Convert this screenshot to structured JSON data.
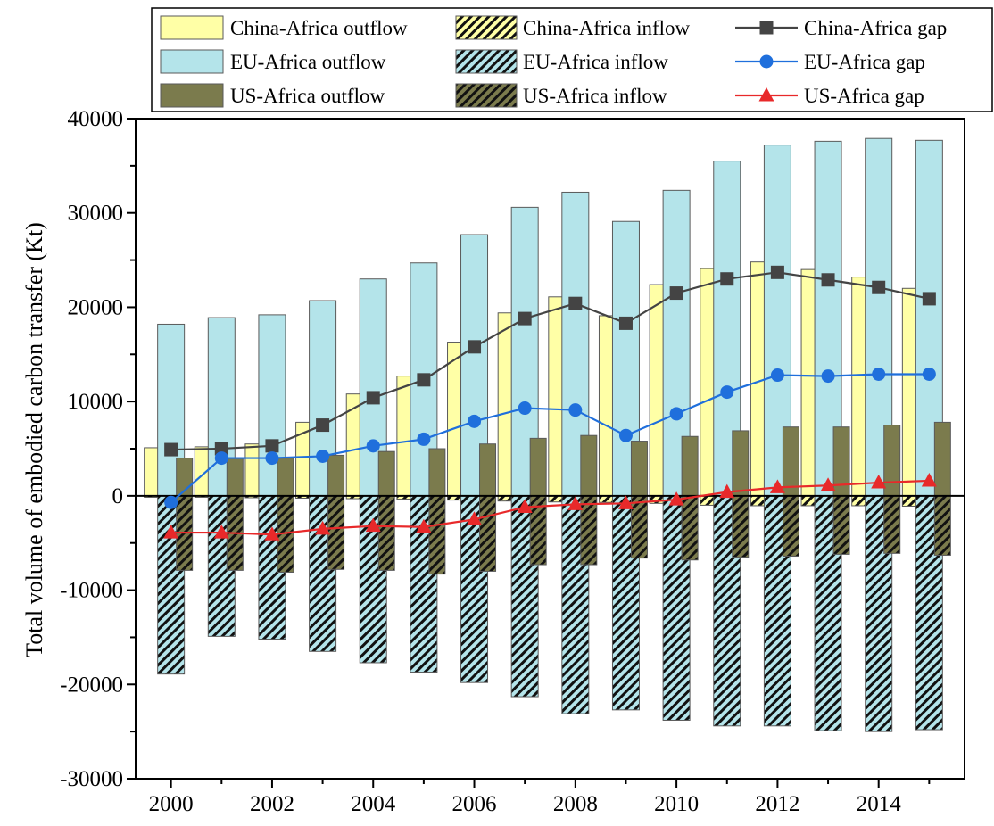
{
  "chart_data": {
    "type": "bar",
    "ylabel": "Total volume of embodied carbon transfer (Kt)",
    "xlabel": "",
    "ylim": [
      -30000,
      40000
    ],
    "xlim": [
      1999.3,
      2015.7
    ],
    "xticks": [
      2000,
      2002,
      2004,
      2006,
      2008,
      2010,
      2012,
      2014
    ],
    "yticks": [
      -30000,
      -20000,
      -10000,
      0,
      10000,
      20000,
      30000,
      40000
    ],
    "x": [
      2000,
      2001,
      2002,
      2003,
      2004,
      2005,
      2006,
      2007,
      2008,
      2009,
      2010,
      2011,
      2012,
      2013,
      2014,
      2015
    ],
    "legend_position": "top",
    "colors": {
      "china": "#ffffa6",
      "eu": "#b4e4ea",
      "us": "#7b7b4d",
      "china_gap": "#444444",
      "eu_gap": "#1f6fdc",
      "us_gap": "#e8292a"
    },
    "bar_series": [
      {
        "name": "China-Africa outflow",
        "kind": "outflow",
        "group": "china",
        "values": [
          5100,
          5200,
          5500,
          7800,
          10800,
          12700,
          16300,
          19400,
          21100,
          19100,
          22400,
          24100,
          24800,
          24000,
          23200,
          22000
        ]
      },
      {
        "name": "China-Africa inflow",
        "kind": "inflow",
        "group": "china",
        "values": [
          -150,
          -150,
          -200,
          -250,
          -300,
          -350,
          -450,
          -550,
          -650,
          -700,
          -800,
          -1000,
          -1050,
          -1050,
          -1050,
          -1100
        ]
      },
      {
        "name": "EU-Africa outflow",
        "kind": "outflow",
        "group": "eu",
        "values": [
          18200,
          18900,
          19200,
          20700,
          23000,
          24700,
          27700,
          30600,
          32200,
          29100,
          32400,
          35500,
          37200,
          37600,
          37900,
          37700
        ]
      },
      {
        "name": "EU-Africa inflow",
        "kind": "inflow",
        "group": "eu",
        "values": [
          -18900,
          -14900,
          -15200,
          -16500,
          -17700,
          -18700,
          -19800,
          -21300,
          -23100,
          -22700,
          -23800,
          -24400,
          -24400,
          -24900,
          -25000,
          -24800
        ]
      },
      {
        "name": "US-Africa outflow",
        "kind": "outflow",
        "group": "us",
        "values": [
          4000,
          4000,
          4000,
          4300,
          4700,
          5000,
          5500,
          6100,
          6400,
          5800,
          6300,
          6900,
          7300,
          7300,
          7500,
          7800
        ]
      },
      {
        "name": "US-Africa inflow",
        "kind": "inflow",
        "group": "us",
        "values": [
          -7900,
          -7900,
          -8100,
          -7800,
          -7900,
          -8300,
          -8000,
          -7300,
          -7300,
          -6600,
          -6800,
          -6500,
          -6400,
          -6200,
          -6100,
          -6300
        ]
      }
    ],
    "line_series": [
      {
        "name": "China-Africa gap",
        "group": "china_gap",
        "marker": "square",
        "values": [
          4900,
          5000,
          5300,
          7500,
          10400,
          12300,
          15800,
          18800,
          20400,
          18300,
          21500,
          23000,
          23700,
          22900,
          22100,
          20900
        ]
      },
      {
        "name": "EU-Africa gap",
        "group": "eu_gap",
        "marker": "circle",
        "values": [
          -700,
          4000,
          4000,
          4200,
          5300,
          6000,
          7900,
          9300,
          9100,
          6400,
          8700,
          11000,
          12800,
          12700,
          12900,
          12900
        ]
      },
      {
        "name": "US-Africa gap",
        "group": "us_gap",
        "marker": "triangle",
        "values": [
          -3900,
          -3900,
          -4100,
          -3500,
          -3200,
          -3300,
          -2500,
          -1200,
          -900,
          -800,
          -400,
          400,
          900,
          1100,
          1400,
          1600
        ]
      }
    ]
  }
}
